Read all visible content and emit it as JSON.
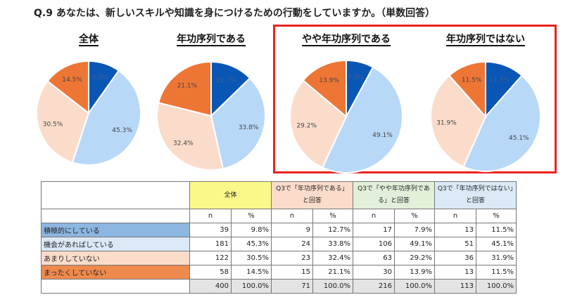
{
  "question": "Q.9 あなたは、新しいスキルや知識を身につけるための行動をしていますか。（単数回答）",
  "colors": {
    "積極的にしている": "#0a56b4",
    "機会があればしている": "#b8d8f8",
    "あまりしていない": "#fbdccb",
    "まったくしていない": "#ee7635",
    "highlight_box": "#e8231f"
  },
  "chart_data": [
    {
      "type": "pie",
      "title": "全体",
      "categories": [
        "積極的にしている",
        "機会があればしている",
        "あまりしていない",
        "まったくしていない"
      ],
      "values": [
        9.8,
        45.3,
        30.5,
        14.5
      ],
      "labels": [
        "9.8%",
        "45.3%",
        "30.5%",
        "14.5%"
      ]
    },
    {
      "type": "pie",
      "title": "年功序列である",
      "categories": [
        "積極的にしている",
        "機会があればしている",
        "あまりしていない",
        "まったくしていない"
      ],
      "values": [
        12.7,
        33.8,
        32.4,
        21.1
      ],
      "labels": [
        "12.7%",
        "33.8%",
        "32.4%",
        "21.1%"
      ]
    },
    {
      "type": "pie",
      "title": "やや年功序列である",
      "categories": [
        "積極的にしている",
        "機会があればしている",
        "あまりしていない",
        "まったくしていない"
      ],
      "values": [
        7.9,
        49.1,
        29.2,
        13.9
      ],
      "labels": [
        "7.9%",
        "49.1%",
        "29.2%",
        "13.9%"
      ]
    },
    {
      "type": "pie",
      "title": "年功序列ではない",
      "categories": [
        "積極的にしている",
        "機会があればしている",
        "あまりしていない",
        "まったくしていない"
      ],
      "values": [
        11.5,
        45.1,
        31.9,
        11.5
      ],
      "labels": [
        "11.5%",
        "45.1%",
        "31.9%",
        "11.5%"
      ]
    }
  ],
  "table": {
    "groups": [
      {
        "label": "全体",
        "color": "#fbf88a"
      },
      {
        "label": "Q3で「年功序列である」と回答",
        "color": "#fbdccb"
      },
      {
        "label": "Q3で「やや年功序列である」と回答",
        "color": "#e2efd9"
      },
      {
        "label": "Q3で「年功序列ではない」と回答",
        "color": "#dbe9f6"
      }
    ],
    "subheaders": [
      "n",
      "%"
    ],
    "rows": [
      {
        "label": "積極的にしている",
        "color": "#8db6e0",
        "cells": [
          "39",
          "9.8%",
          "9",
          "12.7%",
          "17",
          "7.9%",
          "13",
          "11.5%"
        ]
      },
      {
        "label": "機会があればしている",
        "color": "#dbe9f6",
        "cells": [
          "181",
          "45.3%",
          "24",
          "33.8%",
          "106",
          "49.1%",
          "51",
          "45.1%"
        ]
      },
      {
        "label": "あまりしていない",
        "color": "#fbdccb",
        "cells": [
          "122",
          "30.5%",
          "23",
          "32.4%",
          "63",
          "29.2%",
          "36",
          "31.9%"
        ]
      },
      {
        "label": "まったくしていない",
        "color": "#ee8a4e",
        "cells": [
          "58",
          "14.5%",
          "15",
          "21.1%",
          "30",
          "13.9%",
          "13",
          "11.5%"
        ]
      },
      {
        "label": "",
        "color": "#ffffff",
        "cells": [
          "400",
          "100.0%",
          "71",
          "100.0%",
          "216",
          "100.0%",
          "113",
          "100.0%"
        ]
      }
    ]
  }
}
